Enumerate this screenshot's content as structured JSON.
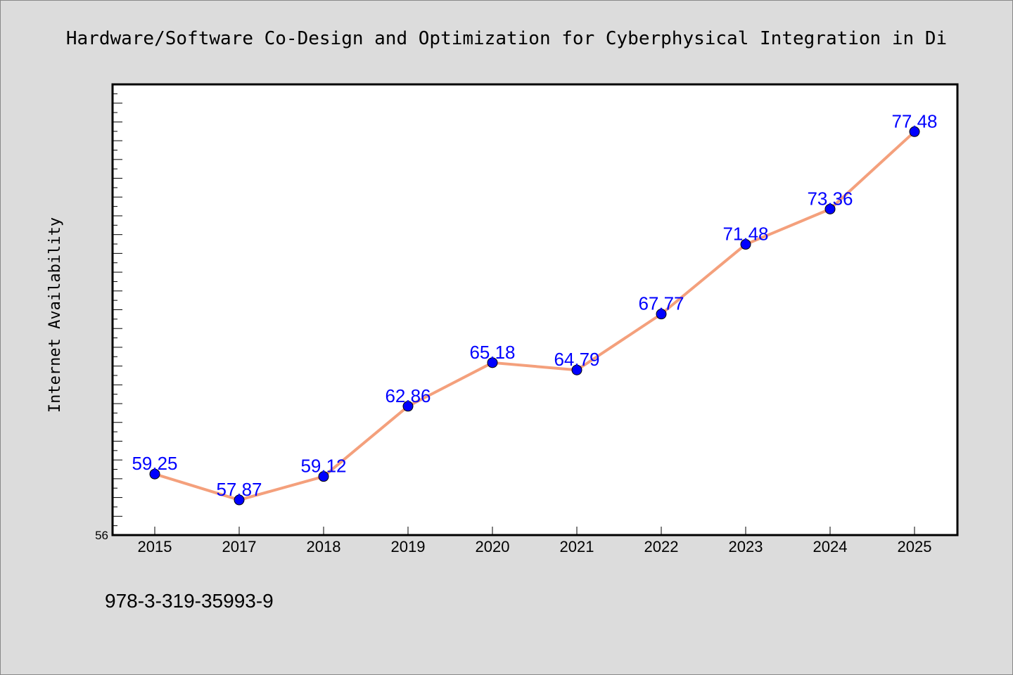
{
  "chart_data": {
    "type": "line",
    "title": "Hardware/Software Co-Design and Optimization for Cyberphysical Integration in Di",
    "xlabel": "",
    "ylabel": "Internet Availability",
    "categories": [
      "2015",
      "2017",
      "2018",
      "2019",
      "2020",
      "2021",
      "2022",
      "2023",
      "2024",
      "2025"
    ],
    "series": [
      {
        "name": "",
        "values": [
          59.25,
          57.87,
          59.12,
          62.86,
          65.18,
          64.79,
          67.77,
          71.48,
          73.36,
          77.48
        ]
      }
    ],
    "value_labels": [
      "59.25",
      "57.87",
      "59.12",
      "62.86",
      "65.18",
      "64.79",
      "67.77",
      "71.48",
      "73.36",
      "77.48"
    ],
    "ylim": [
      56,
      80
    ],
    "y_tick_labels": [
      "56"
    ],
    "grid": false,
    "legend": "none",
    "colors": {
      "background": "#dcdcdc",
      "plot_background": "#ffffff",
      "line": "#f4a07c",
      "marker": "#0000ff",
      "labels": "#0000ff"
    }
  },
  "footnote": "978-3-319-35993-9"
}
